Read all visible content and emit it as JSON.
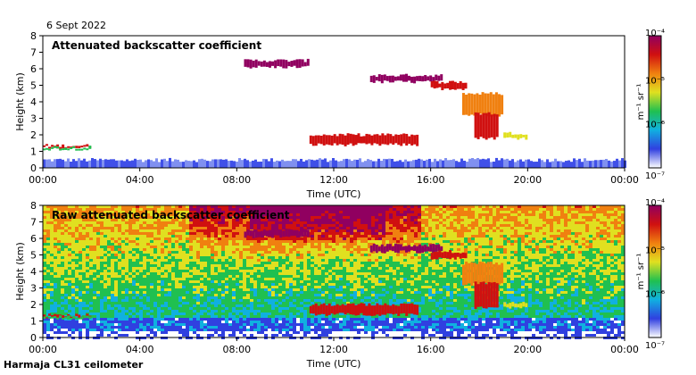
{
  "date_label": "6 Sept 2022",
  "station_label": "Harmaja CL31 ceilometer",
  "chart_data": [
    {
      "type": "heatmap",
      "title": "Attenuated backscatter coefficient",
      "xlabel": "Time (UTC)",
      "ylabel": "Height (km)",
      "x_ticks": [
        "00:00",
        "04:00",
        "08:00",
        "12:00",
        "16:00",
        "20:00",
        "00:00"
      ],
      "x_range_hours": [
        0,
        24
      ],
      "y_ticks": [
        0,
        1,
        2,
        3,
        4,
        5,
        6,
        7,
        8
      ],
      "ylim": [
        0,
        8
      ],
      "colorbar": {
        "scale": "log",
        "range": [
          1e-07,
          0.0001
        ],
        "tick_labels": [
          "10⁻⁷",
          "10⁻⁶",
          "10⁻⁵",
          "10⁻⁴"
        ],
        "unit": "m⁻¹ sr⁻¹",
        "colors": [
          "#ffffff",
          "#3040e0",
          "#10b0e0",
          "#20c050",
          "#e0e020",
          "#f08010",
          "#d01010",
          "#900060"
        ]
      },
      "layers": [
        {
          "feature": "near-surface blue layer",
          "start_h": 0,
          "end_h": 24,
          "base_km": 0,
          "top_km": 0.4
        },
        {
          "feature": "red layer",
          "start_h": 0,
          "end_h": 2,
          "base_km": 1.25,
          "top_km": 1.35
        },
        {
          "feature": "purple high cloud",
          "start_h": 8.3,
          "end_h": 11,
          "base_km": 6.1,
          "top_km": 6.5
        },
        {
          "feature": "red/orange cloud band",
          "start_h": 11,
          "end_h": 15.5,
          "base_km": 1.4,
          "top_km": 2.0
        },
        {
          "feature": "purple/red cloud",
          "start_h": 13.5,
          "end_h": 17.5,
          "base_km": 4.8,
          "top_km": 5.8
        },
        {
          "feature": "descending red/orange cloud",
          "start_h": 17.3,
          "end_h": 20,
          "base_km": 1.8,
          "top_km": 4.5
        }
      ]
    },
    {
      "type": "heatmap",
      "title": "Raw attenuated backscatter coefficient",
      "xlabel": "Time (UTC)",
      "ylabel": "Height (km)",
      "x_ticks": [
        "00:00",
        "04:00",
        "08:00",
        "12:00",
        "16:00",
        "20:00",
        "00:00"
      ],
      "x_range_hours": [
        0,
        24
      ],
      "y_ticks": [
        0,
        1,
        2,
        3,
        4,
        5,
        6,
        7,
        8
      ],
      "ylim": [
        0,
        8
      ],
      "colorbar": {
        "scale": "log",
        "range": [
          1e-07,
          0.0001
        ],
        "tick_labels": [
          "10⁻⁷",
          "10⁻⁶",
          "10⁻⁵",
          "10⁻⁴"
        ],
        "unit": "m⁻¹ sr⁻¹",
        "colors": [
          "#ffffff",
          "#3040e0",
          "#10b0e0",
          "#20c050",
          "#e0e020",
          "#f08010",
          "#d01010",
          "#900060"
        ]
      },
      "layers": [
        {
          "feature": "noisy background",
          "start_h": 0,
          "end_h": 24,
          "base_km": 0,
          "top_km": 8
        },
        {
          "feature": "high noise region",
          "start_h": 6,
          "end_h": 15.5,
          "base_km": 5,
          "top_km": 8
        },
        {
          "feature": "red layer",
          "start_h": 0,
          "end_h": 2,
          "base_km": 1.25,
          "top_km": 1.35
        },
        {
          "feature": "descending cloud",
          "start_h": 17.3,
          "end_h": 20,
          "base_km": 1.8,
          "top_km": 4.5
        }
      ]
    }
  ]
}
